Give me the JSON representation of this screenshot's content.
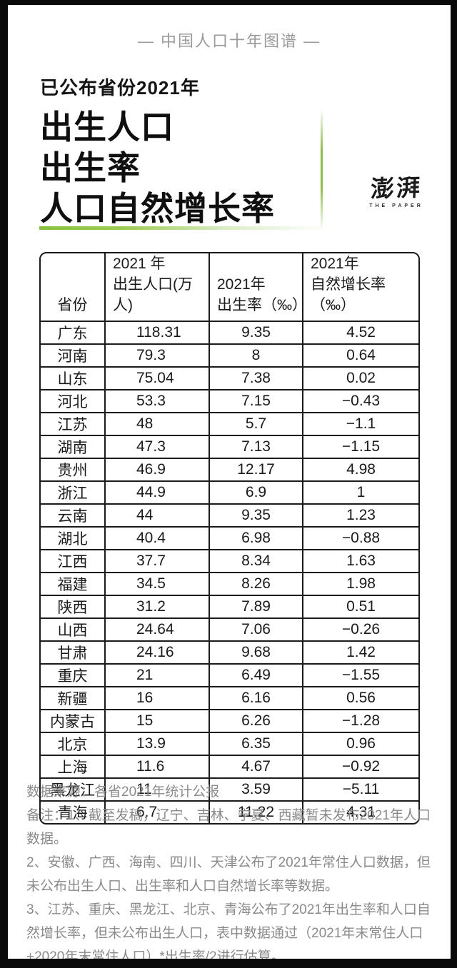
{
  "page": {
    "kicker": "—  中国人口十年图谱  —",
    "title_eyebrow": "已公布省份2021年",
    "title_lines": [
      "出生人口",
      "出生率",
      "人口自然增长率"
    ],
    "logo": {
      "cn": "澎湃",
      "en": "THE PAPER"
    },
    "accent_green": "#8dc63f",
    "frame_color": "#0a0a0a"
  },
  "table": {
    "headers": [
      {
        "line1": "",
        "line2": "省份"
      },
      {
        "line1": "2021 年",
        "line2": "出生人口(万人)"
      },
      {
        "line1": "2021年",
        "line2": "出生率（‰）"
      },
      {
        "line1": "2021年",
        "line2": "自然增长率（‰）"
      }
    ],
    "rows": [
      [
        "广东",
        "118.31",
        "9.35",
        "4.52"
      ],
      [
        "河南",
        "79.3",
        "8",
        "0.64"
      ],
      [
        "山东",
        "75.04",
        "7.38",
        "0.02"
      ],
      [
        "河北",
        "53.3",
        "7.15",
        "−0.43"
      ],
      [
        "江苏",
        "48",
        "5.7",
        "−1.1"
      ],
      [
        "湖南",
        "47.3",
        "7.13",
        "−1.15"
      ],
      [
        "贵州",
        "46.9",
        "12.17",
        "4.98"
      ],
      [
        "浙江",
        "44.9",
        "6.9",
        "1"
      ],
      [
        "云南",
        "44",
        "9.35",
        "1.23"
      ],
      [
        "湖北",
        "40.4",
        "6.98",
        "−0.88"
      ],
      [
        "江西",
        "37.7",
        "8.34",
        "1.63"
      ],
      [
        "福建",
        "34.5",
        "8.26",
        "1.98"
      ],
      [
        "陕西",
        "31.2",
        "7.89",
        "0.51"
      ],
      [
        "山西",
        "24.64",
        "7.06",
        "−0.26"
      ],
      [
        "甘肃",
        "24.16",
        "9.68",
        "1.42"
      ],
      [
        "重庆",
        "21",
        "6.49",
        "−1.55"
      ],
      [
        "新疆",
        "16",
        "6.16",
        "0.56"
      ],
      [
        "内蒙古",
        "15",
        "6.26",
        "−1.28"
      ],
      [
        "北京",
        "13.9",
        "6.35",
        "0.96"
      ],
      [
        "上海",
        "11.6",
        "4.67",
        "−0.92"
      ],
      [
        "黑龙江",
        "11",
        "3.59",
        "−5.11"
      ],
      [
        "青海",
        "6.7",
        "11.22",
        "4.31"
      ]
    ]
  },
  "footer": {
    "source": "数据来源：各省2021年统计公报",
    "notes": [
      "备注：1、截至发稿，辽宁、吉林、宁夏、西藏暂未发布2021年人口数据。",
      "2、安徽、广西、海南、四川、天津公布了2021年常住人口数据，但未公布出生人口、出生率和人口自然增长率等数据。",
      "3、江苏、重庆、黑龙江、北京、青海公布了2021年出生率和人口自然增长率，但未公布出生人口，表中数据通过（2021年末常住人口+2020年末常住人口）*出生率/2进行估算。"
    ]
  },
  "chart_data": {
    "type": "table",
    "title": "已公布省份2021年出生人口、出生率、人口自然增长率",
    "columns": [
      "省份",
      "2021年出生人口(万人)",
      "2021年出生率（‰）",
      "2021年自然增长率（‰）"
    ],
    "rows": [
      [
        "广东",
        118.31,
        9.35,
        4.52
      ],
      [
        "河南",
        79.3,
        8,
        0.64
      ],
      [
        "山东",
        75.04,
        7.38,
        0.02
      ],
      [
        "河北",
        53.3,
        7.15,
        -0.43
      ],
      [
        "江苏",
        48,
        5.7,
        -1.1
      ],
      [
        "湖南",
        47.3,
        7.13,
        -1.15
      ],
      [
        "贵州",
        46.9,
        12.17,
        4.98
      ],
      [
        "浙江",
        44.9,
        6.9,
        1
      ],
      [
        "云南",
        44,
        9.35,
        1.23
      ],
      [
        "湖北",
        40.4,
        6.98,
        -0.88
      ],
      [
        "江西",
        37.7,
        8.34,
        1.63
      ],
      [
        "福建",
        34.5,
        8.26,
        1.98
      ],
      [
        "陕西",
        31.2,
        7.89,
        0.51
      ],
      [
        "山西",
        24.64,
        7.06,
        -0.26
      ],
      [
        "甘肃",
        24.16,
        9.68,
        1.42
      ],
      [
        "重庆",
        21,
        6.49,
        -1.55
      ],
      [
        "新疆",
        16,
        6.16,
        0.56
      ],
      [
        "内蒙古",
        15,
        6.26,
        -1.28
      ],
      [
        "北京",
        13.9,
        6.35,
        0.96
      ],
      [
        "上海",
        11.6,
        4.67,
        -0.92
      ],
      [
        "黑龙江",
        11,
        3.59,
        -5.11
      ],
      [
        "青海",
        6.7,
        11.22,
        4.31
      ]
    ],
    "source": "各省2021年统计公报"
  }
}
